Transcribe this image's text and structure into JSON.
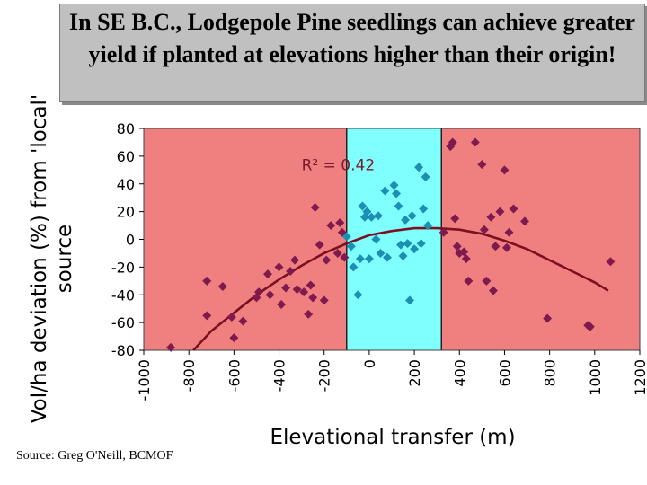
{
  "title": "In SE B.C., Lodgepole Pine seedlings can achieve greater yield if planted at elevations higher than their origin!",
  "source": "Source: Greg O'Neill, BCMOF",
  "chart_data": {
    "type": "scatter",
    "xlabel": "Elevational transfer (m)",
    "ylabel": "Vol/ha deviation (%) from 'local' source",
    "xlim": [
      -1000,
      1200
    ],
    "ylim": [
      -80,
      80
    ],
    "x_ticks": [
      "-1000",
      "-800",
      "-600",
      "-400",
      "-200",
      "0",
      "200",
      "400",
      "600",
      "800",
      "1000",
      "1200"
    ],
    "y_ticks": [
      "80",
      "60",
      "40",
      "20",
      "0",
      "-20",
      "-40",
      "-60",
      "-80"
    ],
    "grid": false,
    "annotation": {
      "text": "R² = 0.42",
      "x": -300,
      "y": 50
    },
    "regions": [
      {
        "from": -1000,
        "to": -100,
        "color": "#f08080"
      },
      {
        "from": -100,
        "to": 320,
        "color": "#80ffff"
      },
      {
        "from": 320,
        "to": 1200,
        "color": "#f08080"
      }
    ],
    "series": [
      {
        "color": "#7f1a4e",
        "points": [
          [
            -880,
            -78
          ],
          [
            -720,
            -30
          ],
          [
            -720,
            -55
          ],
          [
            -650,
            -34
          ],
          [
            -610,
            -56
          ],
          [
            -600,
            -71
          ],
          [
            -560,
            -59
          ],
          [
            -500,
            -42
          ],
          [
            -490,
            -38
          ],
          [
            -450,
            -25
          ],
          [
            -440,
            -40
          ],
          [
            -400,
            -20
          ],
          [
            -390,
            -47
          ],
          [
            -370,
            -35
          ],
          [
            -350,
            -23
          ],
          [
            -330,
            -15
          ],
          [
            -320,
            -36
          ],
          [
            -290,
            -38
          ],
          [
            -270,
            -54
          ],
          [
            -260,
            -33
          ],
          [
            -250,
            -42
          ],
          [
            -240,
            23
          ],
          [
            -220,
            -4
          ],
          [
            -200,
            -44
          ],
          [
            -190,
            -15
          ],
          [
            -170,
            10
          ],
          [
            -140,
            -10
          ],
          [
            -130,
            12
          ],
          [
            -120,
            5
          ],
          [
            -110,
            -13
          ]
        ]
      },
      {
        "color": "#1c8fb3",
        "points": [
          [
            -100,
            2
          ],
          [
            -80,
            -5
          ],
          [
            -70,
            -20
          ],
          [
            -50,
            -40
          ],
          [
            -40,
            -14
          ],
          [
            -30,
            24
          ],
          [
            -20,
            16
          ],
          [
            -10,
            20
          ],
          [
            0,
            -14
          ],
          [
            10,
            16
          ],
          [
            30,
            0
          ],
          [
            40,
            17
          ],
          [
            50,
            -10
          ],
          [
            70,
            35
          ],
          [
            80,
            -13
          ],
          [
            110,
            39
          ],
          [
            120,
            33
          ],
          [
            130,
            24
          ],
          [
            140,
            -4
          ],
          [
            150,
            -12
          ],
          [
            160,
            14
          ],
          [
            170,
            -3
          ],
          [
            180,
            -44
          ],
          [
            190,
            17
          ],
          [
            200,
            -7
          ],
          [
            220,
            52
          ],
          [
            230,
            -3
          ],
          [
            240,
            22
          ],
          [
            250,
            45
          ],
          [
            260,
            10
          ]
        ]
      },
      {
        "color": "#7f1a4e",
        "points": [
          [
            330,
            5
          ],
          [
            360,
            67
          ],
          [
            370,
            70
          ],
          [
            380,
            15
          ],
          [
            390,
            -5
          ],
          [
            400,
            -10
          ],
          [
            420,
            -9
          ],
          [
            430,
            -14
          ],
          [
            440,
            -30
          ],
          [
            470,
            70
          ],
          [
            500,
            54
          ],
          [
            510,
            7
          ],
          [
            520,
            -30
          ],
          [
            540,
            16
          ],
          [
            550,
            -37
          ],
          [
            560,
            -5
          ],
          [
            580,
            20
          ],
          [
            600,
            50
          ],
          [
            610,
            -6
          ],
          [
            620,
            5
          ],
          [
            640,
            22
          ],
          [
            690,
            13
          ],
          [
            790,
            -57
          ],
          [
            970,
            -62
          ],
          [
            980,
            -63
          ],
          [
            1070,
            -16
          ]
        ]
      }
    ],
    "trend": {
      "color": "#7a1020",
      "points": [
        [
          -780,
          -80
        ],
        [
          -700,
          -66
        ],
        [
          -600,
          -53
        ],
        [
          -500,
          -40
        ],
        [
          -400,
          -29
        ],
        [
          -300,
          -19
        ],
        [
          -200,
          -10
        ],
        [
          -100,
          -3
        ],
        [
          0,
          3
        ],
        [
          100,
          6
        ],
        [
          200,
          8
        ],
        [
          300,
          8
        ],
        [
          400,
          7
        ],
        [
          500,
          4
        ],
        [
          600,
          -1
        ],
        [
          700,
          -7
        ],
        [
          800,
          -15
        ],
        [
          900,
          -23
        ],
        [
          1000,
          -31
        ],
        [
          1060,
          -37
        ]
      ]
    }
  }
}
